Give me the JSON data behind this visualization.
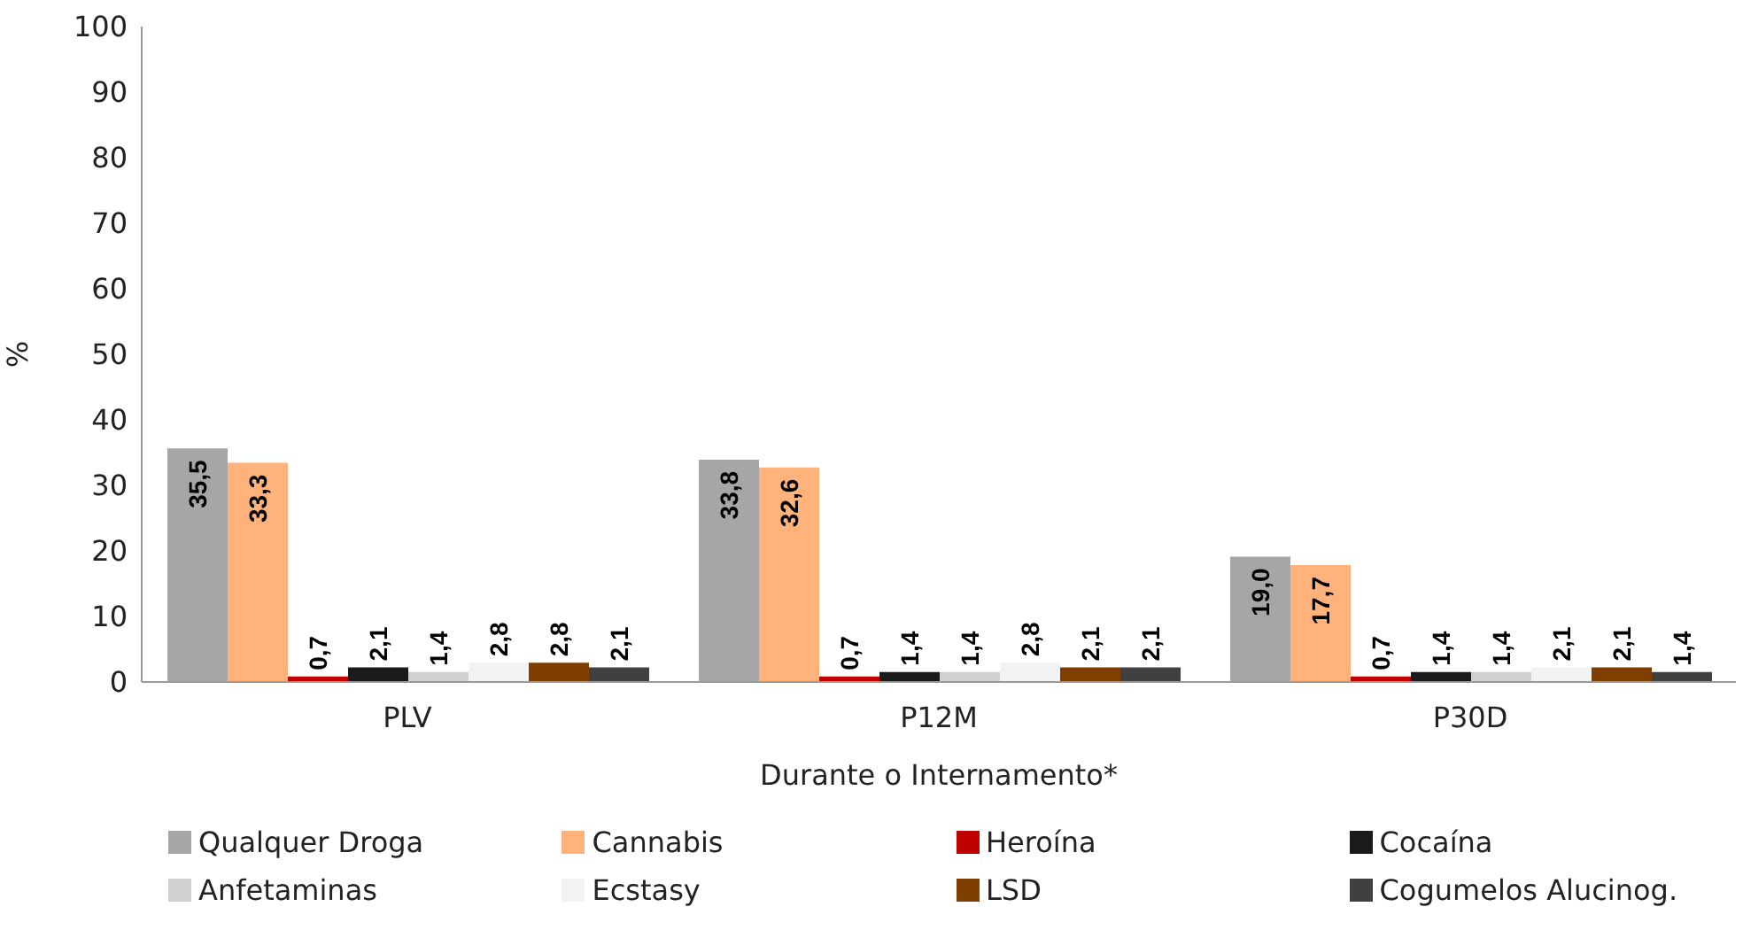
{
  "chart_data": {
    "type": "bar",
    "ylabel": "%",
    "xlabel": "Durante o Internamento*",
    "categories": [
      "PLV",
      "P12M",
      "P30D"
    ],
    "ylim": [
      0,
      100
    ],
    "yticks": [
      0,
      10,
      20,
      30,
      40,
      50,
      60,
      70,
      80,
      90,
      100
    ],
    "legend": "bottom",
    "series": [
      {
        "name": "Qualquer Droga",
        "color": "#a6a6a6",
        "values": [
          35.5,
          33.8,
          19.0
        ],
        "value_labels": [
          "35,5",
          "33,8",
          "19,0"
        ]
      },
      {
        "name": "Cannabis",
        "color": "#ffb27a",
        "values": [
          33.3,
          32.6,
          17.7
        ],
        "value_labels": [
          "33,3",
          "32,6",
          "17,7"
        ]
      },
      {
        "name": "Heroína",
        "color": "#c00000",
        "values": [
          0.7,
          0.7,
          0.7
        ],
        "value_labels": [
          "0,7",
          "0,7",
          "0,7"
        ]
      },
      {
        "name": "Cocaína",
        "color": "#1a1a1a",
        "values": [
          2.1,
          1.4,
          1.4
        ],
        "value_labels": [
          "2,1",
          "1,4",
          "1,4"
        ]
      },
      {
        "name": "Anfetaminas",
        "color": "#d0d0d0",
        "values": [
          1.4,
          1.4,
          1.4
        ],
        "value_labels": [
          "1,4",
          "1,4",
          "1,4"
        ]
      },
      {
        "name": "Ecstasy",
        "color": "#f2f2f2",
        "values": [
          2.8,
          2.8,
          2.1
        ],
        "value_labels": [
          "2,8",
          "2,8",
          "2,1"
        ]
      },
      {
        "name": "LSD",
        "color": "#7f3f00",
        "values": [
          2.8,
          2.1,
          2.1
        ],
        "value_labels": [
          "2,8",
          "2,1",
          "2,1"
        ]
      },
      {
        "name": "Cogumelos Alucinog.",
        "color": "#404040",
        "values": [
          2.1,
          2.1,
          1.4
        ],
        "value_labels": [
          "2,1",
          "2,1",
          "1,4"
        ]
      }
    ]
  }
}
